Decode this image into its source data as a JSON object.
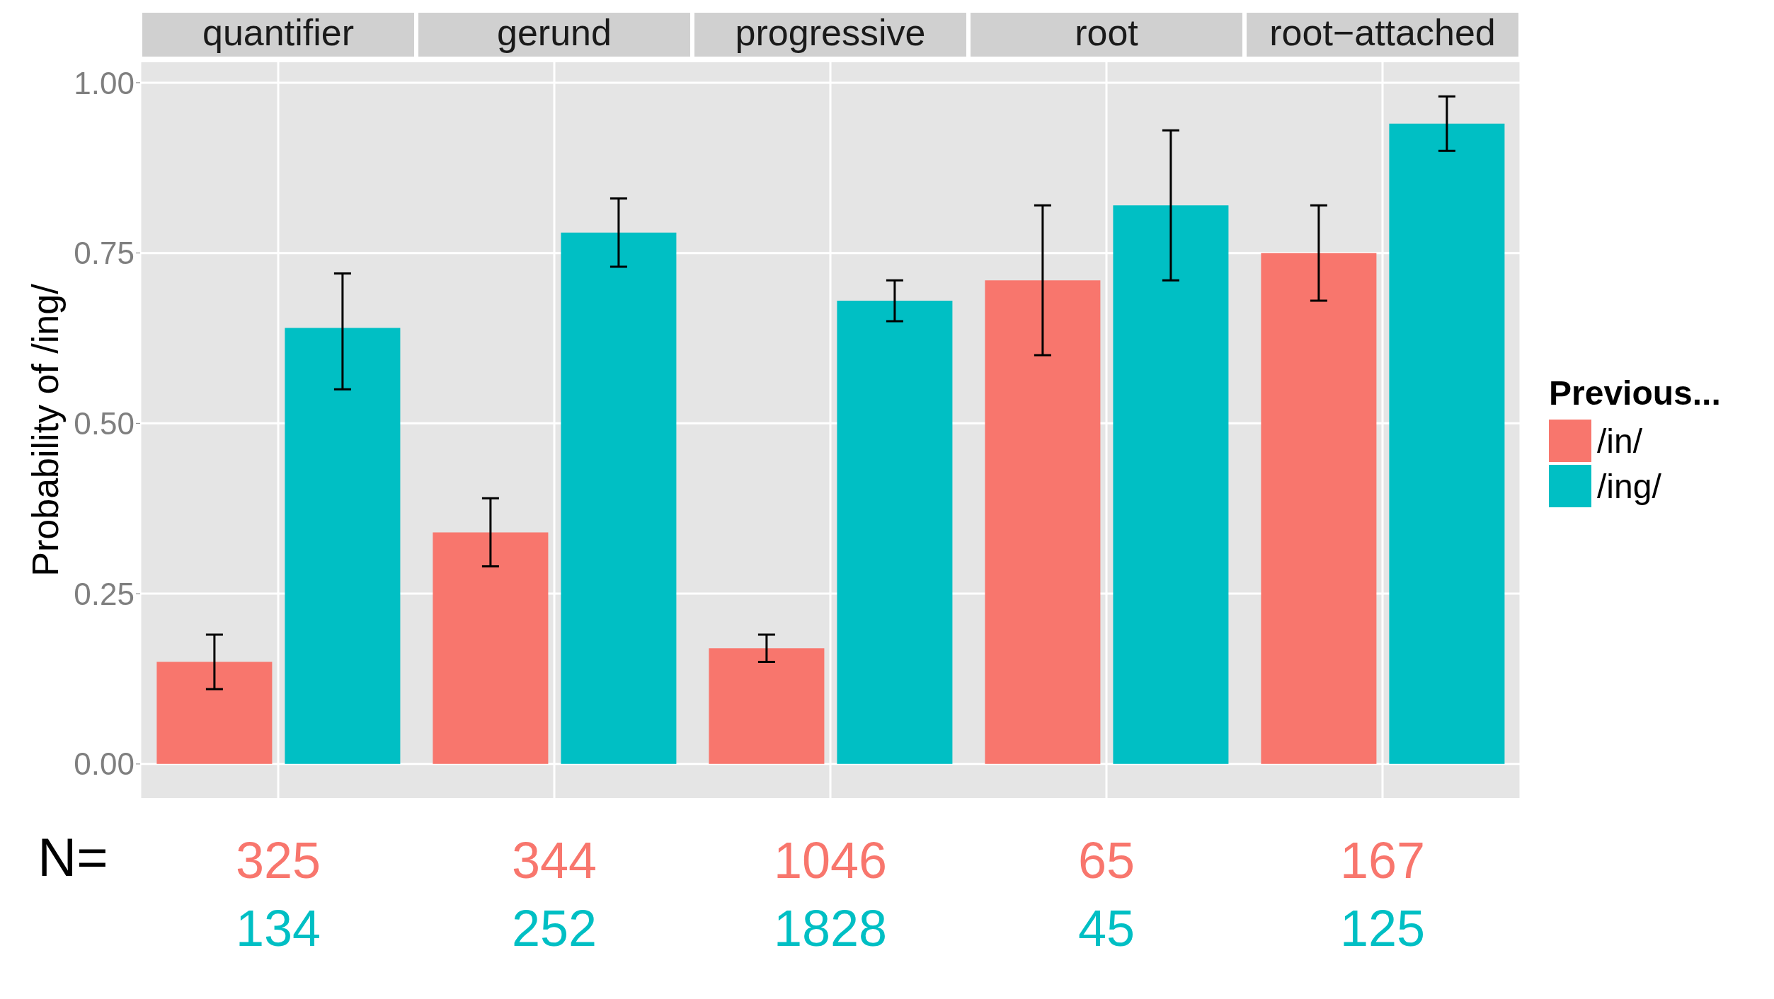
{
  "chart_data": {
    "type": "bar",
    "ylabel": "Probability of /ing/",
    "legend_title": "Previous...",
    "categories": [
      "quantifier",
      "gerund",
      "progressive",
      "root",
      "root−attached"
    ],
    "series": [
      {
        "name": "/in/",
        "color": "#f8766d",
        "values": [
          0.15,
          0.34,
          0.17,
          0.71,
          0.75
        ],
        "errors": [
          [
            0.11,
            0.19
          ],
          [
            0.29,
            0.39
          ],
          [
            0.15,
            0.19
          ],
          [
            0.6,
            0.82
          ],
          [
            0.68,
            0.82
          ]
        ]
      },
      {
        "name": "/ing/",
        "color": "#00bfc4",
        "values": [
          0.64,
          0.78,
          0.68,
          0.82,
          0.94
        ],
        "errors": [
          [
            0.55,
            0.72
          ],
          [
            0.73,
            0.83
          ],
          [
            0.65,
            0.71
          ],
          [
            0.71,
            0.93
          ],
          [
            0.9,
            0.98
          ]
        ]
      }
    ],
    "ylim": [
      -0.05,
      1.03
    ],
    "yticks": [
      {
        "value": 0,
        "label": "0.00"
      },
      {
        "value": 0.25,
        "label": "0.25"
      },
      {
        "value": 0.5,
        "label": "0.50"
      },
      {
        "value": 0.75,
        "label": "0.75"
      },
      {
        "value": 1,
        "label": "1.00"
      }
    ],
    "grid": true,
    "legend": "right",
    "annotations": [
      "N=",
      "325",
      "134",
      "344",
      "252",
      "1046",
      "1828",
      "65",
      "45",
      "167",
      "125"
    ]
  }
}
